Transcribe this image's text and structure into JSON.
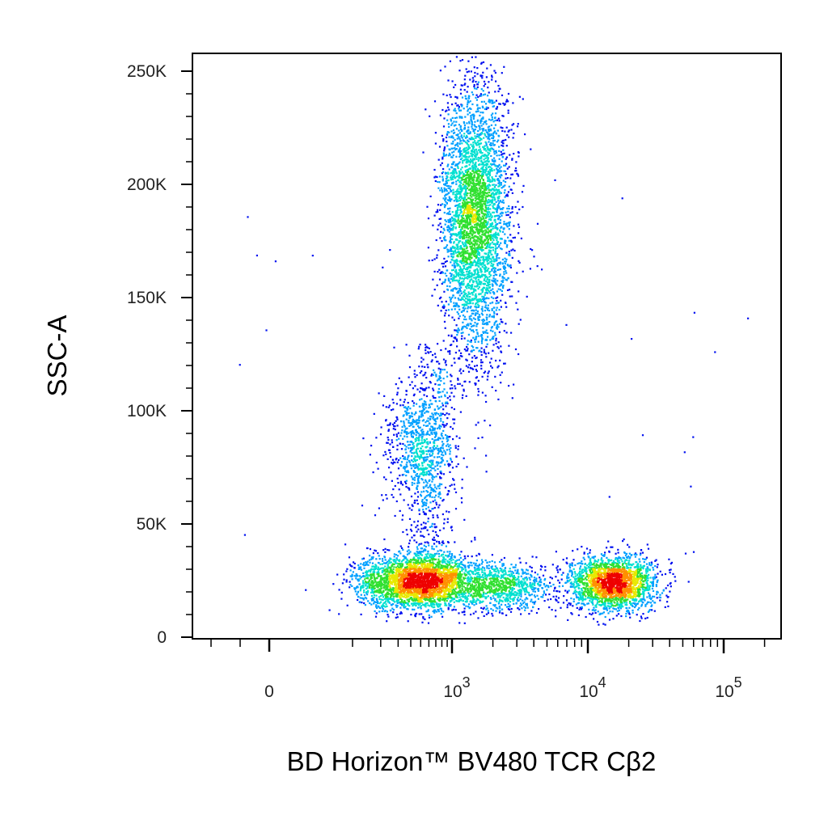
{
  "chart_data": {
    "type": "scatter",
    "title": "",
    "xlabel": "BD Horizon™ BV480 TCR Cβ2",
    "ylabel": "SSC-A",
    "x_scale": "biexponential",
    "x_ticks": [
      {
        "value": 0,
        "label": "0"
      },
      {
        "value": 1000,
        "label": "10",
        "sup": "3"
      },
      {
        "value": 10000,
        "label": "10",
        "sup": "4"
      },
      {
        "value": 100000,
        "label": "10",
        "sup": "5"
      }
    ],
    "y_ticks": [
      {
        "value": 0,
        "label": "0"
      },
      {
        "value": 50000,
        "label": "50K"
      },
      {
        "value": 100000,
        "label": "100K"
      },
      {
        "value": 150000,
        "label": "150K"
      },
      {
        "value": 200000,
        "label": "200K"
      },
      {
        "value": 250000,
        "label": "250K"
      }
    ],
    "xlim": [
      -400,
      262144
    ],
    "ylim": [
      -2000,
      262144
    ],
    "grid": false,
    "color_map": "density (blue-cyan-green-yellow-red)",
    "colors": [
      "#0010f0",
      "#00a0ff",
      "#00e0d0",
      "#30e030",
      "#e8e800",
      "#ff9000",
      "#ee0000"
    ],
    "populations": [
      {
        "x_center": 1450,
        "x_spread_log10": 0.13,
        "y_center": 185000,
        "y_spread": 30000,
        "count": 3800
      },
      {
        "x_center": 480,
        "x_spread_log10": 0.17,
        "y_center": 85000,
        "y_spread": 14000,
        "count": 700
      },
      {
        "x_center": 550,
        "x_spread_log10": 0.25,
        "y_center": 25000,
        "y_spread": 6000,
        "count": 2500
      },
      {
        "x_center": 2200,
        "x_spread_log10": 0.2,
        "y_center": 23000,
        "y_spread": 5000,
        "count": 900
      },
      {
        "x_center": 15000,
        "x_spread_log10": 0.16,
        "y_center": 24000,
        "y_spread": 6000,
        "count": 2200
      },
      {
        "x_center": 200,
        "x_spread_log10": 0.2,
        "y_center": 24000,
        "y_spread": 6000,
        "count": 500
      }
    ]
  }
}
